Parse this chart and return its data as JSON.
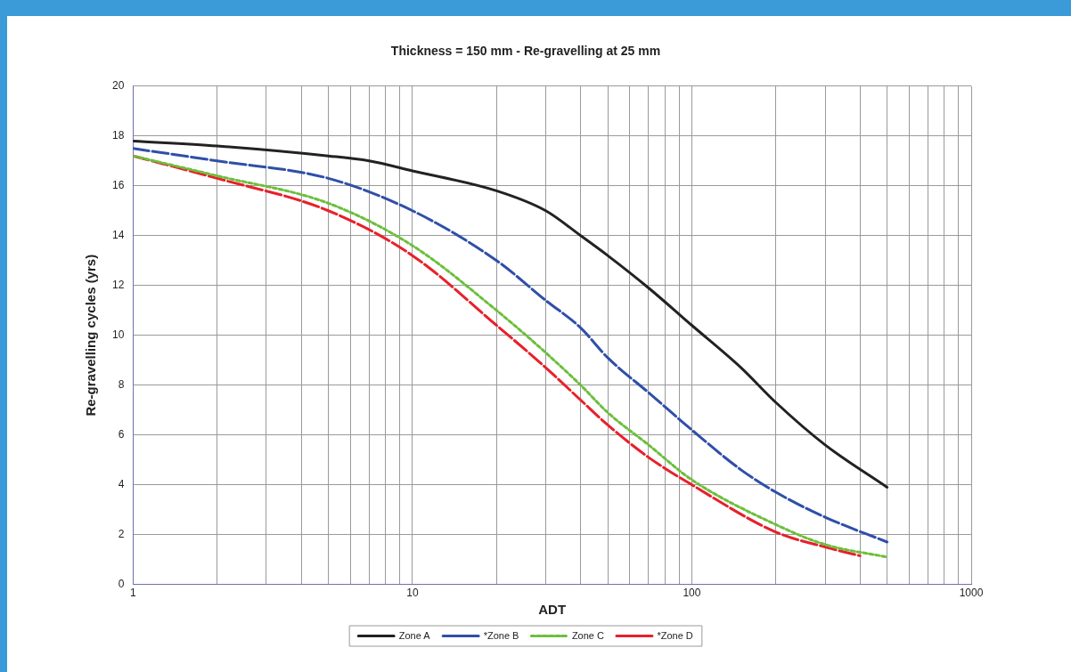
{
  "chart_data": {
    "type": "line",
    "title": "Thickness = 150 mm - Re-gravelling at 25 mm",
    "xlabel": "ADT",
    "ylabel": "Re-gravelling cycles (yrs)",
    "log": "x",
    "grid": true,
    "legend": "bottom",
    "marker": "none",
    "xlim": [
      1,
      1000
    ],
    "xticks": [
      1,
      {
        "value": 2,
        "label": null
      },
      {
        "value": 3,
        "label": null
      },
      {
        "value": 4,
        "label": null
      },
      {
        "value": 5,
        "label": null
      },
      {
        "value": 6,
        "label": null
      },
      {
        "value": 7,
        "label": null
      },
      {
        "value": 8,
        "label": null
      },
      {
        "value": 9,
        "label": null
      },
      10,
      {
        "value": 20,
        "label": null
      },
      {
        "value": 30,
        "label": null
      },
      {
        "value": 40,
        "label": null
      },
      {
        "value": 50,
        "label": null
      },
      {
        "value": 60,
        "label": null
      },
      {
        "value": 70,
        "label": null
      },
      {
        "value": 80,
        "label": null
      },
      {
        "value": 90,
        "label": null
      },
      100,
      {
        "value": 200,
        "label": null
      },
      {
        "value": 300,
        "label": null
      },
      {
        "value": 400,
        "label": null
      },
      {
        "value": 500,
        "label": null
      },
      {
        "value": 600,
        "label": null
      },
      {
        "value": 700,
        "label": null
      },
      {
        "value": 800,
        "label": null
      },
      {
        "value": 900,
        "label": null
      },
      1000
    ],
    "ylim": [
      0,
      20
    ],
    "yticks": [
      0,
      2,
      4,
      6,
      8,
      10,
      12,
      14,
      16,
      18,
      20
    ],
    "series": [
      {
        "name": "Zone A",
        "color": "#222222",
        "line_style": "solid",
        "x": [
          1,
          2,
          5,
          7,
          10,
          20,
          30,
          40,
          50,
          70,
          100,
          150,
          200,
          300,
          500
        ],
        "values": [
          17.8,
          17.6,
          17.2,
          17.0,
          16.6,
          15.8,
          15.0,
          14.0,
          13.2,
          11.9,
          10.4,
          8.7,
          7.3,
          5.6,
          3.9
        ]
      },
      {
        "name": "*Zone B",
        "color": "#2f4fa8",
        "line_style": "dashed",
        "x": [
          1,
          2,
          5,
          10,
          20,
          30,
          40,
          50,
          70,
          100,
          150,
          200,
          300,
          500
        ],
        "values": [
          17.5,
          17.0,
          16.3,
          15.0,
          13.0,
          11.4,
          10.3,
          9.1,
          7.7,
          6.2,
          4.6,
          3.7,
          2.7,
          1.7
        ]
      },
      {
        "name": "Zone C",
        "color": "#6cbf3c",
        "line_style": "dotted",
        "x": [
          1,
          2,
          5,
          10,
          20,
          30,
          40,
          50,
          70,
          100,
          200,
          300,
          500
        ],
        "values": [
          17.2,
          16.4,
          15.3,
          13.6,
          11.0,
          9.3,
          8.0,
          6.9,
          5.6,
          4.2,
          2.4,
          1.6,
          1.1
        ]
      },
      {
        "name": "*Zone D",
        "color": "#e8202a",
        "line_style": "dashed",
        "x": [
          1,
          2,
          5,
          10,
          20,
          30,
          40,
          50,
          70,
          100,
          200,
          300,
          400
        ],
        "values": [
          17.2,
          16.3,
          15.0,
          13.2,
          10.4,
          8.7,
          7.4,
          6.4,
          5.1,
          4.0,
          2.1,
          1.5,
          1.15
        ]
      }
    ]
  }
}
